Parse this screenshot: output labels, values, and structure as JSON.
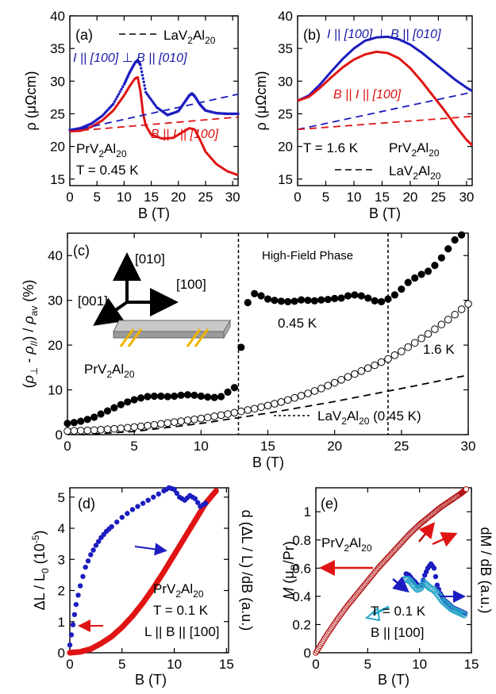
{
  "colors": {
    "blue": "#1c1cc0",
    "red": "#e01414",
    "black": "#000000",
    "cyan": "#2aa6c8",
    "darkred": "#b01010",
    "orange": "#f0b400"
  },
  "chart_data": [
    {
      "panel": "(a)",
      "type": "line",
      "xlabel": "B (T)",
      "ylabel": "ρ (μΩcm)",
      "xlim": [
        0,
        31
      ],
      "ylim": [
        14,
        40
      ],
      "xticks": [
        "0",
        "5",
        "10",
        "15",
        "20",
        "25",
        "30"
      ],
      "yticks": [
        "15",
        "20",
        "25",
        "30",
        "35",
        "40"
      ],
      "legend": [
        "LaV2Al20"
      ],
      "annotations": [
        "I || [100] ⊥ B || [010]",
        "B || I || [100]",
        "PrV2Al20",
        "T = 0.45 K"
      ],
      "series": [
        {
          "name": "I || [100] ⊥ B || [010]",
          "color": "blue",
          "style": "dots",
          "x": [
            0,
            2,
            4,
            6,
            8,
            10,
            11,
            12,
            12.5,
            13,
            14,
            16,
            18,
            20,
            21,
            22,
            22.5,
            23,
            24,
            25,
            27,
            29,
            31
          ],
          "y": [
            22.5,
            22.8,
            23.5,
            24.7,
            26.5,
            29.5,
            31.3,
            32.8,
            33.2,
            32.5,
            28.3,
            26.0,
            24.8,
            25.4,
            26.6,
            27.8,
            28.1,
            27.7,
            26.4,
            25.5,
            25.1,
            25.0,
            25.0
          ]
        },
        {
          "name": "B || I || [100]",
          "color": "red",
          "style": "solid",
          "x": [
            0,
            2,
            4,
            6,
            8,
            10,
            11,
            12,
            12.5,
            13,
            13.5,
            14,
            15,
            17,
            19,
            21,
            22,
            23,
            24,
            25,
            27,
            29,
            31
          ],
          "y": [
            22.3,
            22.4,
            23.0,
            24.0,
            25.5,
            27.8,
            29.2,
            30.4,
            30.6,
            28.5,
            25.0,
            23.2,
            21.8,
            21.2,
            21.3,
            22.3,
            22.8,
            22.6,
            21.0,
            19.2,
            17.3,
            16.2,
            15.6
          ]
        },
        {
          "name": "LaV2Al20 (I ⊥ B)",
          "color": "blue",
          "style": "dashed",
          "x": [
            0,
            31
          ],
          "y": [
            22.3,
            28.0
          ]
        },
        {
          "name": "LaV2Al20 (B || I)",
          "color": "red",
          "style": "dashed",
          "x": [
            0,
            31
          ],
          "y": [
            22.3,
            24.5
          ]
        }
      ]
    },
    {
      "panel": "(b)",
      "type": "line",
      "xlabel": "B (T)",
      "ylabel": "ρ (μΩcm)",
      "xlim": [
        0,
        31
      ],
      "ylim": [
        14,
        40
      ],
      "xticks": [
        "0",
        "5",
        "10",
        "15",
        "20",
        "25",
        "30"
      ],
      "yticks": [
        "15",
        "20",
        "25",
        "30",
        "35",
        "40"
      ],
      "legend": [
        "LaV2Al20"
      ],
      "annotations": [
        "I || [100] ⊥ B || [010]",
        "B || I || [100]",
        "T = 1.6 K",
        "PrV2Al20"
      ],
      "series": [
        {
          "name": "I || [100] ⊥ B || [010]",
          "color": "blue",
          "style": "solid",
          "x": [
            0,
            2,
            4,
            6,
            8,
            10,
            12,
            14,
            16,
            18,
            20,
            22,
            24,
            26,
            28,
            30,
            31
          ],
          "y": [
            27.0,
            27.8,
            29.5,
            31.5,
            33.4,
            35.0,
            36.2,
            36.7,
            36.8,
            36.4,
            35.6,
            34.4,
            33.0,
            31.6,
            30.2,
            29.0,
            28.5
          ]
        },
        {
          "name": "B || I || [100]",
          "color": "red",
          "style": "solid",
          "x": [
            0,
            2,
            4,
            6,
            8,
            10,
            12,
            14,
            16,
            18,
            20,
            22,
            24,
            26,
            28,
            30,
            31
          ],
          "y": [
            27.0,
            27.6,
            29.0,
            30.6,
            32.1,
            33.3,
            34.1,
            34.5,
            34.3,
            33.5,
            32.0,
            30.0,
            27.8,
            25.6,
            23.2,
            21.0,
            20.2
          ]
        },
        {
          "name": "LaV2Al20 (I ⊥ B)",
          "color": "blue",
          "style": "dashed",
          "x": [
            0,
            31
          ],
          "y": [
            22.6,
            28.3
          ]
        },
        {
          "name": "LaV2Al20 (B || I)",
          "color": "red",
          "style": "dashed",
          "x": [
            0,
            31
          ],
          "y": [
            22.6,
            24.6
          ]
        }
      ]
    },
    {
      "panel": "(c)",
      "type": "scatter",
      "xlabel": "B (T)",
      "ylabel": "(ρ⊥ - ρ//) / ρav (%)",
      "xlim": [
        0,
        30
      ],
      "ylim": [
        0,
        45
      ],
      "xticks": [
        "0",
        "5",
        "10",
        "15",
        "20",
        "25",
        "30"
      ],
      "yticks": [
        "0",
        "10",
        "20",
        "30",
        "40"
      ],
      "annotations": [
        "High-Field Phase",
        "0.45 K",
        "1.6 K",
        "PrV2Al20",
        "LaV2Al20 (0.45 K)",
        "[010]",
        "[100]",
        "[001]"
      ],
      "vlines": [
        12.8,
        24.0
      ],
      "series": [
        {
          "name": "0.45 K",
          "marker": "filled",
          "x": [
            0,
            0.5,
            1,
            1.5,
            2,
            2.5,
            3,
            3.5,
            4,
            4.5,
            5,
            5.5,
            6,
            6.5,
            7,
            7.5,
            8,
            8.5,
            9,
            9.5,
            10,
            10.5,
            11,
            11.5,
            12,
            12.5,
            13,
            13.5,
            14,
            14.5,
            15,
            15.5,
            16,
            16.5,
            17,
            17.5,
            18,
            18.5,
            19,
            19.5,
            20,
            20.5,
            21,
            21.5,
            22,
            22.5,
            23,
            23.5,
            24,
            24.5,
            25,
            25.5,
            26,
            26.5,
            27,
            27.5,
            28,
            28.5,
            29,
            29.5
          ],
          "y": [
            2.5,
            2.7,
            3.0,
            3.4,
            3.9,
            4.6,
            5.3,
            6.0,
            6.7,
            7.3,
            7.8,
            8.2,
            8.5,
            8.6,
            8.6,
            8.5,
            8.6,
            8.8,
            8.9,
            8.8,
            8.6,
            8.4,
            8.3,
            8.5,
            9.5,
            10.5,
            19.5,
            29.5,
            31.5,
            31.0,
            30.3,
            30.0,
            29.8,
            29.7,
            29.8,
            30.1,
            30.0,
            29.9,
            30.1,
            30.2,
            30.4,
            30.5,
            31.0,
            31.2,
            31.0,
            30.5,
            29.9,
            29.7,
            30.3,
            31.2,
            32.5,
            34.0,
            35.0,
            35.8,
            36.5,
            37.8,
            39.5,
            41.5,
            43.5,
            44.6
          ]
        },
        {
          "name": "1.6 K",
          "marker": "open",
          "x": [
            0,
            1,
            2,
            3,
            4,
            5,
            6,
            7,
            8,
            9,
            10,
            11,
            12,
            13,
            14,
            15,
            16,
            17,
            18,
            19,
            20,
            21,
            22,
            23,
            24,
            25,
            26,
            27,
            28,
            29,
            30
          ],
          "y": [
            0.8,
            0.9,
            1.0,
            1.2,
            1.4,
            1.7,
            2.0,
            2.4,
            2.8,
            3.2,
            3.6,
            4.1,
            4.6,
            5.2,
            5.8,
            6.5,
            7.3,
            8.2,
            9.2,
            10.3,
            11.6,
            12.9,
            14.2,
            15.5,
            16.9,
            18.6,
            20.5,
            22.5,
            24.6,
            26.8,
            29.2
          ]
        },
        {
          "name": "LaV2Al20 (0.45 K)",
          "style": "dashed",
          "x": [
            1,
            5,
            10,
            15,
            20,
            25,
            30
          ],
          "y": [
            0,
            0.7,
            2.5,
            4.8,
            7.4,
            10.3,
            13.3
          ]
        }
      ]
    },
    {
      "panel": "(d)",
      "type": "scatter",
      "xlabel": "B (T)",
      "ylabel": "ΔL / L0 (10^-5)",
      "ylabel_right": "d (ΔL / L) /dB (a.u.)",
      "xlim": [
        0,
        15.2
      ],
      "ylim": [
        0,
        5.3
      ],
      "xticks": [
        "0",
        "5",
        "10",
        "15"
      ],
      "yticks": [
        "0",
        "1",
        "2",
        "3",
        "4",
        "5"
      ],
      "annotations": [
        "PrV2Al20",
        "T = 0.1 K",
        "L || B || [100]"
      ],
      "series": [
        {
          "name": "ΔL / L0",
          "color": "red",
          "axis": "left",
          "x": [
            0,
            1,
            2,
            3,
            4,
            5,
            6,
            7,
            8,
            9,
            10,
            11,
            12,
            13,
            14
          ],
          "y": [
            0.0,
            0.03,
            0.12,
            0.3,
            0.52,
            0.82,
            1.18,
            1.6,
            2.08,
            2.6,
            3.15,
            3.7,
            4.25,
            4.8,
            5.2
          ]
        },
        {
          "name": "d(ΔL/L)/dB",
          "color": "blue",
          "axis": "right",
          "x": [
            0,
            0.3,
            0.6,
            1,
            1.5,
            2,
            2.5,
            3,
            3.5,
            4,
            5,
            6,
            7,
            8,
            9,
            9.5,
            10,
            10.5,
            11,
            11.5,
            12,
            12.5,
            13
          ],
          "y": [
            0.25,
            0.9,
            1.55,
            2.15,
            2.75,
            3.15,
            3.45,
            3.7,
            3.9,
            4.05,
            4.35,
            4.6,
            4.8,
            5.0,
            5.2,
            5.3,
            5.25,
            5.0,
            4.9,
            5.05,
            4.95,
            4.7,
            4.8
          ]
        }
      ]
    },
    {
      "panel": "(e)",
      "type": "scatter",
      "xlabel": "B (T)",
      "ylabel": "M (μB/Pr)",
      "ylabel_right": "dM / dB (a.u.)",
      "xlim": [
        0,
        15
      ],
      "ylim": [
        0,
        1.17
      ],
      "xticks": [
        "0",
        "5",
        "10",
        "15"
      ],
      "yticks": [
        "0",
        "0.2",
        "0.4",
        "0.6",
        "0.8",
        "1"
      ],
      "annotations": [
        "PrV2Al20",
        "T = 0.1 K",
        "B || [100]"
      ],
      "series": [
        {
          "name": "M",
          "color": "darkred",
          "axis": "left",
          "x": [
            0,
            1,
            2,
            3,
            4,
            5,
            6,
            7,
            8,
            9,
            10,
            11,
            12,
            13,
            14,
            14.5
          ],
          "y": [
            0,
            0.12,
            0.23,
            0.33,
            0.42,
            0.51,
            0.6,
            0.68,
            0.76,
            0.84,
            0.91,
            0.97,
            1.03,
            1.08,
            1.13,
            1.16
          ]
        },
        {
          "name": "dM/dB (blue)",
          "color": "blue",
          "axis": "right",
          "x": [
            8.7,
            9,
            9.3,
            9.6,
            9.9,
            10.2,
            10.5,
            10.8,
            11.1,
            11.4,
            11.7,
            12,
            12.3,
            12.6,
            12.9,
            13.2,
            13.5,
            13.8,
            14.1,
            14.4
          ],
          "y": [
            0.56,
            0.55,
            0.52,
            0.5,
            0.47,
            0.48,
            0.55,
            0.6,
            0.63,
            0.6,
            0.48,
            0.42,
            0.38,
            0.36,
            0.34,
            0.32,
            0.31,
            0.3,
            0.29,
            0.28
          ]
        },
        {
          "name": "dM/dB (cyan)",
          "color": "cyan",
          "axis": "right",
          "x": [
            8.6,
            8.9,
            9.2,
            9.5,
            9.8,
            10.1,
            10.4,
            10.7,
            11,
            11.3,
            11.6,
            11.9,
            12.2,
            12.5,
            12.8,
            13.1,
            13.4,
            13.7,
            14,
            14.3
          ],
          "y": [
            0.52,
            0.52,
            0.5,
            0.47,
            0.45,
            0.46,
            0.5,
            0.48,
            0.46,
            0.45,
            0.43,
            0.4,
            0.37,
            0.35,
            0.33,
            0.31,
            0.3,
            0.29,
            0.28,
            0.27
          ]
        }
      ]
    }
  ]
}
